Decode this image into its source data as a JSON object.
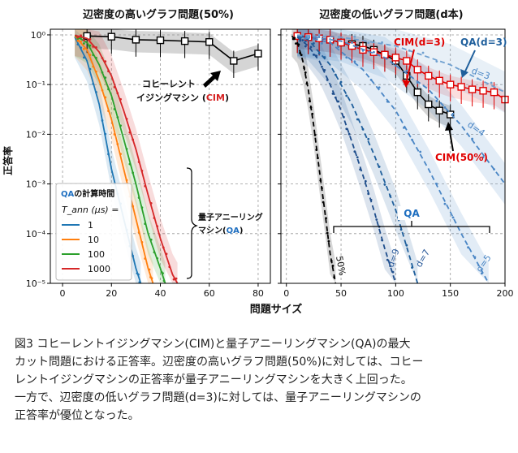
{
  "figure": {
    "left_title": "辺密度の高いグラフ問題(50%)",
    "right_title": "辺密度の低いグラフ問題(d本)",
    "ylabel": "正答率",
    "xlabel": "問題サイズ"
  },
  "chart_data": [
    {
      "type": "line",
      "title": "辺密度の高いグラフ問題(50%)",
      "xlabel": "問題サイズ",
      "ylabel": "正答率",
      "yscale": "log",
      "xlim": [
        -5,
        85
      ],
      "ylim": [
        1e-05,
        1.3
      ],
      "x_ticks": [
        0,
        20,
        40,
        60,
        80
      ],
      "y_ticks": [
        1e-05,
        0.0001,
        0.001,
        0.01,
        0.1,
        1
      ],
      "y_tick_labels": [
        "10⁻⁵",
        "10⁻⁴",
        "10⁻³",
        "10⁻²",
        "10⁻¹",
        "10⁰"
      ],
      "grid": true,
      "series": [
        {
          "name": "CIM",
          "color": "#000000",
          "marker": "square",
          "x": [
            10,
            20,
            30,
            40,
            50,
            60,
            70,
            80
          ],
          "y": [
            0.95,
            0.92,
            0.8,
            0.78,
            0.75,
            0.72,
            0.3,
            0.42
          ]
        },
        {
          "name": "QA T_ann=1",
          "color": "#1f77b4",
          "x": [
            5,
            10,
            15,
            20,
            25,
            30,
            32
          ],
          "y": [
            0.9,
            0.3,
            0.04,
            0.002,
            0.0002,
            2e-05,
            1e-05
          ]
        },
        {
          "name": "QA T_ann=10",
          "color": "#ff7f0e",
          "x": [
            5,
            10,
            15,
            20,
            25,
            30,
            35,
            37
          ],
          "y": [
            0.95,
            0.5,
            0.12,
            0.02,
            0.002,
            0.0002,
            2e-05,
            1e-05
          ]
        },
        {
          "name": "QA T_ann=100",
          "color": "#2ca02c",
          "x": [
            5,
            10,
            15,
            20,
            25,
            30,
            35,
            40,
            42
          ],
          "y": [
            0.97,
            0.7,
            0.25,
            0.06,
            0.008,
            0.001,
            0.0001,
            2e-05,
            1e-05
          ]
        },
        {
          "name": "QA T_ann=1000",
          "color": "#d62728",
          "x": [
            5,
            10,
            15,
            20,
            25,
            30,
            35,
            40,
            45,
            47
          ],
          "y": [
            0.98,
            0.85,
            0.45,
            0.15,
            0.03,
            0.005,
            0.0006,
            8e-05,
            1.5e-05,
            1e-05
          ]
        }
      ],
      "legend": {
        "title_prefix": "QA",
        "title_suffix": "の計算時間",
        "tann_label": "T_ann (μs) =",
        "entries": [
          "1",
          "10",
          "100",
          "1000"
        ],
        "placement": "bottom-left"
      },
      "annotations": {
        "cim_line1": "コヒーレント",
        "cim_line2": "イジングマシン (",
        "cim_abbr": "CIM",
        "cim_close": ")",
        "qa_line1": "量子アニーリング",
        "qa_line2": "マシン(",
        "qa_abbr": "QA",
        "qa_close": ")"
      }
    },
    {
      "type": "line",
      "title": "辺密度の低いグラフ問題(d本)",
      "xlabel": "問題サイズ",
      "yscale": "log",
      "xlim": [
        -5,
        200
      ],
      "ylim": [
        1e-05,
        1.3
      ],
      "x_ticks": [
        0,
        50,
        100,
        150,
        200
      ],
      "grid": true,
      "series": [
        {
          "name": "CIM(50%)",
          "color": "#000000",
          "marker": "square",
          "x": [
            10,
            20,
            30,
            40,
            50,
            60,
            70,
            80,
            90,
            100,
            110,
            120,
            130,
            140,
            150
          ],
          "y": [
            0.95,
            0.9,
            0.85,
            0.8,
            0.7,
            0.65,
            0.6,
            0.5,
            0.4,
            0.3,
            0.15,
            0.07,
            0.04,
            0.03,
            0.025
          ]
        },
        {
          "name": "CIM(d=3)",
          "color": "#e00000",
          "marker": "square",
          "x": [
            10,
            20,
            30,
            40,
            50,
            60,
            70,
            80,
            90,
            100,
            110,
            120,
            130,
            140,
            150,
            160,
            170,
            180,
            190,
            200
          ],
          "y": [
            0.95,
            0.9,
            0.85,
            0.8,
            0.7,
            0.6,
            0.5,
            0.45,
            0.4,
            0.35,
            0.3,
            0.2,
            0.15,
            0.12,
            0.1,
            0.09,
            0.08,
            0.075,
            0.07,
            0.05
          ]
        },
        {
          "name": "QA 50%",
          "color": "#000000",
          "dashed": true,
          "x": [
            5,
            10,
            15,
            20,
            25,
            30,
            35,
            40,
            45
          ],
          "y": [
            0.95,
            0.7,
            0.3,
            0.08,
            0.015,
            0.002,
            0.0003,
            4e-05,
            1e-05
          ]
        },
        {
          "name": "QA d=9",
          "color": "#1f4e8c",
          "dashed": true,
          "x": [
            10,
            20,
            30,
            40,
            50,
            60,
            70,
            80,
            90,
            100
          ],
          "y": [
            0.9,
            0.6,
            0.3,
            0.1,
            0.03,
            0.007,
            0.0015,
            0.0003,
            5e-05,
            1e-05
          ]
        },
        {
          "name": "QA d=7",
          "color": "#1f5f9c",
          "dashed": true,
          "x": [
            10,
            20,
            40,
            60,
            80,
            100,
            120
          ],
          "y": [
            0.95,
            0.8,
            0.25,
            0.04,
            0.004,
            0.0003,
            1e-05
          ]
        },
        {
          "name": "QA d=5",
          "color": "#4a86c5",
          "dashed": true,
          "x": [
            10,
            40,
            70,
            100,
            130,
            160,
            185
          ],
          "y": [
            0.98,
            0.7,
            0.2,
            0.03,
            0.002,
            0.0001,
            1e-05
          ]
        },
        {
          "name": "QA d=4",
          "color": "#4a86c5",
          "dashed": true,
          "x": [
            10,
            50,
            90,
            130,
            160,
            200
          ],
          "y": [
            0.98,
            0.75,
            0.35,
            0.08,
            0.015,
            0.001
          ]
        },
        {
          "name": "QA d=3",
          "color": "#6fa0d0",
          "dashed": true,
          "x": [
            10,
            50,
            100,
            150,
            200
          ],
          "y": [
            0.99,
            0.9,
            0.6,
            0.25,
            0.07
          ]
        }
      ],
      "curve_labels": [
        "50%",
        "d=9",
        "d=7",
        "d=5",
        "d=4",
        "d=3"
      ],
      "annotations": {
        "cim_d3": "CIM(d=3)",
        "qa_d3": "QA(d=3)",
        "cim_50": "CIM(50%)",
        "qa_bracket": "QA"
      }
    }
  ],
  "caption": {
    "lines": [
      "図3 コヒーレントイジングマシン(CIM)と量子アニーリングマシン(QA)の最大",
      "カット問題における正答率。辺密度の高いグラフ問題(50%)に対しては、コヒー",
      "レントイジングマシンの正答率が量子アニーリングマシンを大きく上回った。",
      "一方で、辺密度の低いグラフ問題(d=3)に対しては、量子アニーリングマシンの",
      "正答率が優位となった。"
    ]
  }
}
